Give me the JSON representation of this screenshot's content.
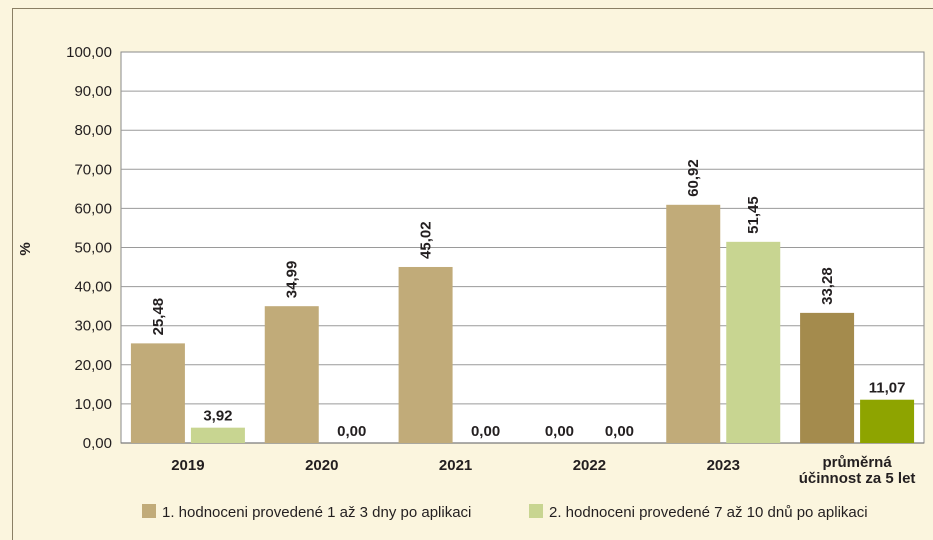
{
  "chart_data": {
    "type": "bar",
    "ylabel": "%",
    "ylim": [
      0,
      100
    ],
    "yticks": [
      "0,00",
      "10,00",
      "20,00",
      "30,00",
      "40,00",
      "50,00",
      "60,00",
      "70,00",
      "80,00",
      "90,00",
      "100,00"
    ],
    "categories": [
      "2019",
      "2020",
      "2021",
      "2022",
      "2023",
      "průměrná účinnost za 5 let"
    ],
    "category_lines": [
      [
        "2019"
      ],
      [
        "2020"
      ],
      [
        "2021"
      ],
      [
        "2022"
      ],
      [
        "2023"
      ],
      [
        "průměrná",
        "účinnost za 5 let"
      ]
    ],
    "grid": true,
    "legend_position": "bottom",
    "series": [
      {
        "name": "1. hodnoceni provedené 1 až 3 dny po aplikaci",
        "values": [
          25.48,
          34.99,
          45.02,
          0.0,
          60.92,
          33.28
        ],
        "labels": [
          "25,48",
          "34,99",
          "45,02",
          "0,00",
          "60,92",
          "33,28"
        ],
        "color": "#c1ab79",
        "highlight_color": "#a48b4d"
      },
      {
        "name": "2. hodnoceni provedené 7 až 10 dnů po aplikaci",
        "values": [
          3.92,
          0.0,
          0.0,
          0.0,
          51.45,
          11.07
        ],
        "labels": [
          "3,92",
          "0,00",
          "0,00",
          "0,00",
          "51,45",
          "11,07"
        ],
        "color": "#c8d591",
        "highlight_color": "#8ea400"
      }
    ]
  }
}
